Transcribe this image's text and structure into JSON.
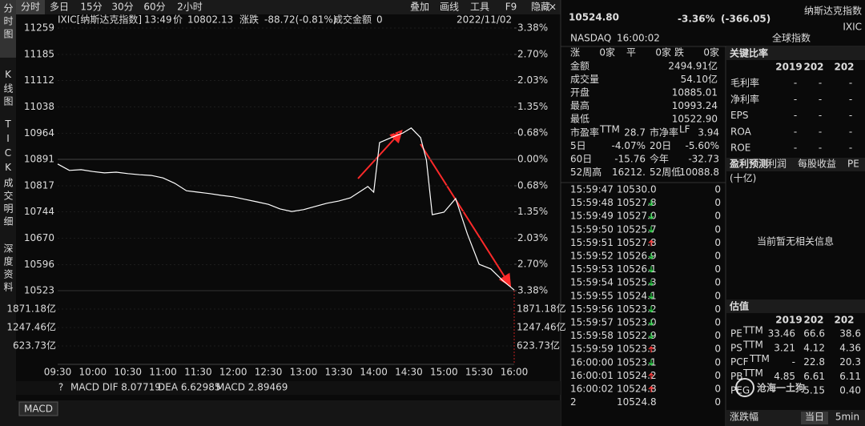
{
  "sidebar": {
    "tabs": [
      "分时图",
      "K线图",
      "TICK",
      "成交明细",
      "深度资料"
    ]
  },
  "toolbar": {
    "periods": [
      "分时",
      "多日",
      "15分",
      "30分",
      "60分",
      "2小时"
    ],
    "tools": [
      "叠加",
      "画线",
      "工具",
      "F9",
      "隐藏"
    ]
  },
  "chart_info": {
    "symbol": "IXIC[纳斯达克指数]",
    "time": "13:49",
    "price_label": "价",
    "price": "10802.13",
    "change_label": "涨跌",
    "change": "-88.72(-0.81%)",
    "amount_label": "成交金额",
    "amount": "0",
    "date": "2022/11/02"
  },
  "chart_data": {
    "type": "line",
    "x": [
      "09:30",
      "09:40",
      "09:50",
      "10:00",
      "10:10",
      "10:20",
      "10:30",
      "10:40",
      "10:50",
      "11:00",
      "11:10",
      "11:20",
      "11:30",
      "11:40",
      "11:50",
      "12:00",
      "12:10",
      "12:20",
      "12:30",
      "12:40",
      "12:50",
      "13:00",
      "13:10",
      "13:20",
      "13:30",
      "13:40",
      "13:49",
      "13:55",
      "14:00",
      "14:05",
      "14:15",
      "14:25",
      "14:32",
      "14:40",
      "14:45",
      "14:50",
      "15:00",
      "15:10",
      "15:20",
      "15:30",
      "15:40",
      "15:50",
      "16:00"
    ],
    "series": [
      {
        "color": "#ffffff",
        "values": [
          10878,
          10860,
          10862,
          10857,
          10853,
          10855,
          10851,
          10848,
          10846,
          10839,
          10824,
          10803,
          10799,
          10795,
          10790,
          10786,
          10779,
          10772,
          10765,
          10752,
          10745,
          10750,
          10759,
          10768,
          10774,
          10783,
          10802.13,
          10815,
          10799,
          10938,
          10952,
          10965,
          10979,
          10952,
          10889,
          10736,
          10743,
          10781,
          10682,
          10597,
          10584,
          10552,
          10524.8
        ]
      }
    ],
    "xlim": [
      "09:30",
      "16:00"
    ],
    "xticks": [
      "09:30",
      "10:00",
      "10:30",
      "11:00",
      "11:30",
      "12:00",
      "12:30",
      "13:00",
      "13:30",
      "14:00",
      "14:30",
      "15:00",
      "15:30",
      "16:00"
    ],
    "ylim": [
      10523,
      11259
    ],
    "yticks": [
      11259,
      11185,
      11112,
      11038,
      10964,
      10891,
      10817,
      10744,
      10670,
      10596,
      10523
    ],
    "y2lim": [
      -3.38,
      3.38
    ],
    "y2ticks": [
      {
        "value": 3.38,
        "label": "3.38%"
      },
      {
        "value": 2.7,
        "label": "2.70%"
      },
      {
        "value": 2.03,
        "label": "2.03%"
      },
      {
        "value": 1.35,
        "label": "1.35%"
      },
      {
        "value": 0.68,
        "label": "0.68%"
      },
      {
        "value": 0,
        "label": "0.00%"
      },
      {
        "value": -0.68,
        "label": "0.68%"
      },
      {
        "value": -1.35,
        "label": "1.35%"
      },
      {
        "value": -2.03,
        "label": "2.03%"
      },
      {
        "value": -2.7,
        "label": "2.70%"
      },
      {
        "value": -3.38,
        "label": "3.38%"
      }
    ],
    "volume_lim": [
      0,
      2494.91
    ],
    "volume_ticks": [
      {
        "value": 1871.18,
        "label": "1871.18亿"
      },
      {
        "value": 1247.46,
        "label": "1247.46亿"
      },
      {
        "value": 623.73,
        "label": "623.73亿"
      }
    ]
  },
  "macd": {
    "help": "?",
    "dif": "MACD DIF 8.07719",
    "dea": "DEA 6.62985",
    "macd": "MACD 2.89469",
    "tab": "MACD"
  },
  "quote": {
    "price": "10524.80",
    "change_pct": "-3.36%",
    "change": "(-366.05)",
    "name": "纳斯达克指数",
    "code": "IXIC",
    "exchange": "NASDAQ",
    "time": "16:00:02",
    "group": "全球指数"
  },
  "breadth": [
    {
      "label": "涨",
      "value": "0家"
    },
    {
      "label": "平",
      "value": "0家"
    },
    {
      "label": "跌",
      "value": "0家"
    }
  ],
  "stats": [
    {
      "label": "金额",
      "value": "2494.91亿",
      "color": "#ffffff"
    },
    {
      "label": "成交量",
      "value": "54.10亿",
      "color": "#ffffff"
    },
    {
      "label": "开盘",
      "value": "10885.01",
      "color": "#ff3b3b"
    },
    {
      "label": "最高",
      "value": "10993.24",
      "color": "#ff3b3b"
    },
    {
      "label": "最低",
      "value": "10522.90",
      "color": "#2fd14a"
    }
  ],
  "pairs": [
    [
      {
        "label": "市盈率",
        "sup": "TTM",
        "value": "28.7"
      },
      {
        "label": "市净率",
        "sup": "LF",
        "value": "3.94"
      }
    ],
    [
      {
        "label": "5日",
        "value": "-4.07%"
      },
      {
        "label": "20日",
        "value": "-5.60%"
      }
    ],
    [
      {
        "label": "60日",
        "value": "-15.76"
      },
      {
        "label": "今年",
        "value": "-32.73"
      }
    ],
    [
      {
        "label": "52周高",
        "value": "16212."
      },
      {
        "label": "52周低",
        "value": "10088.8"
      }
    ]
  ],
  "ticks": [
    {
      "time": "15:59:47",
      "price": "10530.0",
      "dir": "flat",
      "volume": "0"
    },
    {
      "time": "15:59:48",
      "price": "10527.8",
      "dir": "down",
      "volume": "0"
    },
    {
      "time": "15:59:49",
      "price": "10527.0",
      "dir": "down",
      "volume": "0"
    },
    {
      "time": "15:59:50",
      "price": "10525.7",
      "dir": "down",
      "volume": "0"
    },
    {
      "time": "15:59:51",
      "price": "10527.8",
      "dir": "up",
      "volume": "0"
    },
    {
      "time": "15:59:52",
      "price": "10526.9",
      "dir": "down",
      "volume": "0"
    },
    {
      "time": "15:59:53",
      "price": "10526.1",
      "dir": "down",
      "volume": "0"
    },
    {
      "time": "15:59:54",
      "price": "10525.3",
      "dir": "down",
      "volume": "0"
    },
    {
      "time": "15:59:55",
      "price": "10524.1",
      "dir": "down",
      "volume": "0"
    },
    {
      "time": "15:59:56",
      "price": "10523.2",
      "dir": "down",
      "volume": "0"
    },
    {
      "time": "15:59:57",
      "price": "10523.0",
      "dir": "down",
      "volume": "0"
    },
    {
      "time": "15:59:58",
      "price": "10522.9",
      "dir": "down",
      "volume": "0"
    },
    {
      "time": "15:59:59",
      "price": "10523.3",
      "dir": "up",
      "volume": "0"
    },
    {
      "time": "16:00:00",
      "price": "10523.1",
      "dir": "down",
      "volume": "0"
    },
    {
      "time": "16:00:01",
      "price": "10524.2",
      "dir": "up",
      "volume": "0"
    },
    {
      "time": "16:00:02",
      "price": "10524.8",
      "dir": "up",
      "volume": "0"
    },
    {
      "time": "2",
      "price": "10524.8",
      "dir": "flat",
      "volume": "0"
    }
  ],
  "ratios": {
    "title": "关键比率",
    "years": [
      "2019",
      "202",
      "202"
    ],
    "rows": [
      {
        "label": "毛利率",
        "values": [
          "-",
          "-",
          "-"
        ]
      },
      {
        "label": "净利率",
        "values": [
          "-",
          "-",
          "-"
        ]
      },
      {
        "label": "EPS",
        "values": [
          "-",
          "-",
          "-"
        ]
      },
      {
        "label": "ROA",
        "values": [
          "-",
          "-",
          "-"
        ]
      },
      {
        "label": "ROE",
        "values": [
          "-",
          "-",
          "-"
        ]
      }
    ]
  },
  "forecast": {
    "tabs": [
      "盈利预测",
      "利润",
      "每股收益",
      "PE"
    ],
    "unit": "(十亿)",
    "empty": "当前暂无相关信息"
  },
  "valuation": {
    "title": "估值",
    "years": [
      "2019",
      "202",
      "202"
    ],
    "rows": [
      {
        "label": "PE",
        "sup": "TTM",
        "values": [
          "33.46",
          "66.6",
          "38.6"
        ]
      },
      {
        "label": "PS",
        "sup": "TTM",
        "values": [
          "3.21",
          "4.12",
          "4.36"
        ]
      },
      {
        "label": "PCF",
        "sup": "TTM",
        "values": [
          "-",
          "22.8",
          "20.3"
        ]
      },
      {
        "label": "PB",
        "sup": "TTM",
        "values": [
          "4.85",
          "6.61",
          "6.11"
        ]
      },
      {
        "label": "PEG",
        "values": [
          "-",
          "5.15",
          "0.40"
        ]
      }
    ]
  },
  "footer": {
    "label": "涨跌幅",
    "tabs": [
      "当日",
      "5min"
    ]
  },
  "watermark": "沧海一土狗"
}
